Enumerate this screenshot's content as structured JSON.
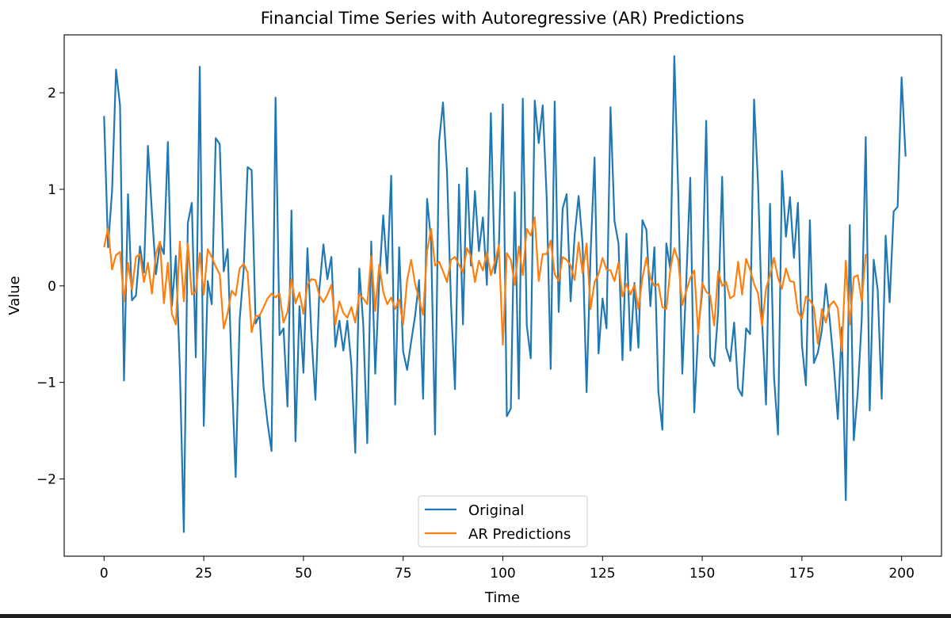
{
  "chart_data": {
    "type": "line",
    "title": "Financial Time Series with Autoregressive (AR) Predictions",
    "xlabel": "Time",
    "ylabel": "Value",
    "xlim": [
      -10,
      210
    ],
    "ylim": [
      -2.8,
      2.6
    ],
    "xticks": [
      0,
      25,
      50,
      75,
      100,
      125,
      150,
      175,
      200
    ],
    "yticks": [
      -2,
      -1,
      0,
      1,
      2
    ],
    "ytick_labels": [
      "−2",
      "−1",
      "0",
      "1",
      "2"
    ],
    "legend_position": "lower center",
    "grid": false,
    "series": [
      {
        "name": "Original",
        "color": "#1f77b4",
        "x_start": 0,
        "values": [
          1.76,
          0.4,
          0.98,
          2.24,
          1.87,
          -0.98,
          0.95,
          -0.15,
          -0.1,
          0.41,
          0.14,
          1.45,
          0.76,
          0.12,
          0.44,
          0.33,
          1.49,
          -0.21,
          0.31,
          -0.85,
          -2.55,
          0.65,
          0.86,
          -0.74,
          2.27,
          -1.45,
          0.05,
          -0.19,
          1.53,
          1.47,
          0.15,
          0.38,
          -0.89,
          -1.98,
          -0.35,
          0.16,
          1.23,
          1.2,
          -0.39,
          -0.3,
          -1.05,
          -1.42,
          -1.71,
          1.95,
          -0.51,
          -0.44,
          -1.25,
          0.78,
          -1.61,
          -0.21,
          -0.9,
          0.39,
          -0.51,
          -1.18,
          -0.03,
          0.43,
          0.07,
          0.3,
          -0.63,
          -0.36,
          -0.67,
          -0.36,
          -0.81,
          -1.73,
          0.18,
          -0.4,
          -1.63,
          0.46,
          -0.91,
          0.05,
          0.73,
          0.13,
          1.14,
          -1.23,
          0.4,
          -0.68,
          -0.87,
          -0.58,
          -0.31,
          0.06,
          -1.17,
          0.9,
          0.47,
          -1.54,
          1.49,
          1.9,
          1.18,
          -0.18,
          -1.07,
          1.05,
          -0.4,
          1.22,
          0.21,
          0.98,
          0.36,
          0.71,
          0.01,
          1.79,
          0.13,
          0.4,
          1.88,
          -1.35,
          -1.27,
          0.97,
          -1.17,
          1.94,
          -0.41,
          -0.75,
          1.92,
          1.48,
          1.87,
          0.91,
          -0.86,
          1.91,
          -0.27,
          0.8,
          0.95,
          -0.16,
          0.52,
          0.93,
          0.43,
          -1.1,
          0.33,
          1.33,
          -0.7,
          -0.13,
          -0.44,
          1.85,
          0.67,
          0.44,
          -0.77,
          0.54,
          -0.67,
          0.03,
          -0.64,
          0.68,
          0.58,
          -0.21,
          0.4,
          -1.09,
          -1.49,
          0.44,
          0.17,
          2.38,
          0.95,
          -0.91,
          0.05,
          1.12,
          -1.31,
          -0.46,
          -0.06,
          1.71,
          -0.74,
          -0.83,
          -0.26,
          1.13,
          -0.64,
          -0.78,
          -0.38,
          -1.06,
          -1.14,
          -0.44,
          -0.5,
          1.93,
          1.05,
          -0.35,
          -1.23,
          0.85,
          -0.94,
          -1.54,
          1.19,
          0.51,
          0.92,
          0.29,
          0.86,
          -0.61,
          -1.03,
          0.68,
          -0.8,
          -0.69,
          -0.46,
          0.02,
          -0.36,
          -0.82,
          -1.38,
          -0.43,
          -2.22,
          0.63,
          -1.6,
          -1.1,
          -0.35,
          1.54,
          -1.29,
          0.27,
          -0.04,
          -1.17,
          0.52,
          -0.17,
          0.77,
          0.82,
          2.16,
          1.34
        ]
      },
      {
        "name": "AR Predictions",
        "color": "#ff7f0e",
        "x_start": 0,
        "values": [
          0.4,
          0.6,
          0.17,
          0.32,
          0.35,
          -0.16,
          0.24,
          -0.04,
          0.3,
          0.33,
          0.04,
          0.24,
          -0.08,
          0.33,
          0.46,
          -0.18,
          0.24,
          -0.29,
          -0.4,
          0.46,
          -0.16,
          0.44,
          -0.09,
          -0.06,
          0.34,
          -0.09,
          0.38,
          0.3,
          0.2,
          0.12,
          -0.44,
          -0.28,
          -0.05,
          -0.1,
          0.18,
          0.23,
          0.14,
          -0.48,
          -0.31,
          -0.31,
          -0.22,
          -0.13,
          -0.08,
          -0.12,
          -0.08,
          -0.38,
          -0.27,
          0.07,
          -0.18,
          -0.07,
          -0.29,
          0.01,
          0.07,
          0.06,
          -0.1,
          -0.17,
          -0.09,
          0.01,
          -0.4,
          -0.16,
          -0.28,
          -0.33,
          -0.22,
          -0.38,
          -0.09,
          -0.13,
          -0.19,
          0.31,
          -0.26,
          0.22,
          -0.06,
          -0.19,
          -0.12,
          -0.24,
          -0.14,
          -0.4,
          0.06,
          0.27,
          0.02,
          -0.14,
          -0.3,
          0.36,
          0.59,
          0.21,
          0.25,
          0.15,
          0.04,
          0.27,
          0.3,
          0.22,
          0.14,
          0.39,
          0.31,
          0.04,
          0.26,
          0.16,
          0.35,
          0.11,
          0.25,
          0.42,
          -0.61,
          0.34,
          0.27,
          0.01,
          0.41,
          0.11,
          0.59,
          0.52,
          0.71,
          0.05,
          0.33,
          0.33,
          0.47,
          0.12,
          0.05,
          0.3,
          0.27,
          0.21,
          0.06,
          0.45,
          0.13,
          0.44,
          -0.24,
          0.04,
          0.12,
          0.29,
          0.17,
          0.16,
          0.05,
          0.24,
          -0.11,
          0.02,
          -0.09,
          0.01,
          -0.24,
          0.08,
          0.29,
          0.08,
          0.0,
          0.02,
          -0.22,
          -0.24,
          0.17,
          0.39,
          0.26,
          -0.2,
          -0.05,
          0.08,
          0.16,
          -0.5,
          0.03,
          -0.06,
          -0.1,
          -0.41,
          0.15,
          0.0,
          0.04,
          -0.13,
          -0.1,
          0.25,
          -0.09,
          0.28,
          0.17,
          0.02,
          -0.08,
          -0.41,
          -0.03,
          0.11,
          0.29,
          0.08,
          -0.03,
          0.18,
          0.05,
          0.04,
          -0.27,
          -0.34,
          -0.11,
          -0.15,
          -0.22,
          -0.6,
          -0.24,
          -0.38,
          -0.2,
          -0.16,
          -0.23,
          -0.68,
          0.26,
          -0.4,
          0.09,
          0.11,
          -0.16,
          0.33
        ]
      }
    ]
  }
}
